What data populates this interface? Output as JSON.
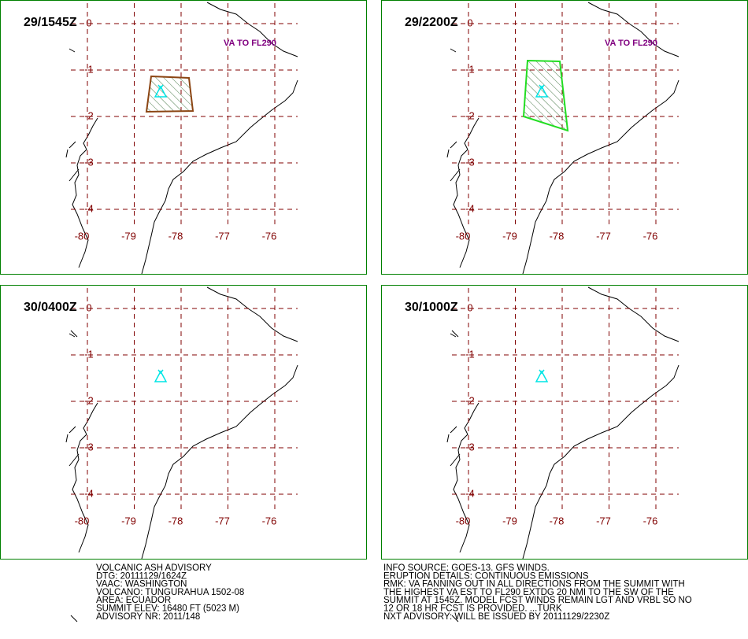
{
  "panels": [
    {
      "time": "29/1545Z",
      "note": "VA TO FL290",
      "cloud_color": "#8b4513"
    },
    {
      "time": "29/2200Z",
      "note": "VA TO FL290",
      "cloud_color": "#22dd22"
    },
    {
      "time": "30/0400Z"
    },
    {
      "time": "30/1000Z"
    }
  ],
  "lat_ticks": [
    0,
    -1,
    -2,
    -3,
    -4
  ],
  "lon_ticks": [
    -80,
    -79,
    -78,
    -77,
    -76
  ],
  "advisory_left": [
    "VOLCANIC ASH ADVISORY",
    "DTG: 20111129/1624Z",
    "VAAC: WASHINGTON",
    "VOLCANO: TUNGURAHUA 1502-08",
    "AREA: ECUADOR",
    "SUMMIT ELEV: 16480 FT (5023 M)",
    "ADVISORY NR: 2011/148"
  ],
  "advisory_right": [
    "INFO SOURCE: GOES-13. GFS WINDS.",
    "ERUPTION DETAILS: CONTINUOUS EMISSIONS",
    "RMK: VA FANNING OUT IN ALL DIRECTIONS FROM THE SUMMIT WITH",
    "THE HIGHEST VA EST TO FL290 EXTDG 20 NMI TO THE SW OF THE",
    "SUMMIT AT 1545Z. MODEL FCST WINDS REMAIN LGT AND VRBL SO NO",
    "12 OR 18 HR FCST IS PROVIDED. ...TURK",
    "NXT ADVISORY: WILL BE ISSUED BY 20111129/2230Z"
  ]
}
